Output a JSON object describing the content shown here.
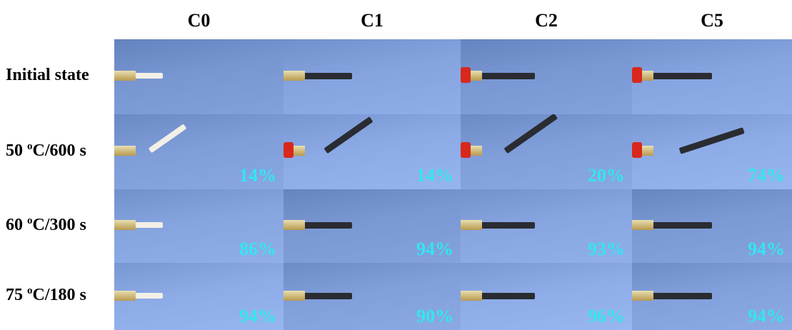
{
  "columns": [
    "C0",
    "C1",
    "C2",
    "C5"
  ],
  "rows": [
    {
      "label": "Initial state"
    },
    {
      "label_parts": [
        "50",
        "o",
        "C/600 s"
      ],
      "recovery": [
        "14%",
        "14%",
        "20%",
        "74%"
      ]
    },
    {
      "label_parts": [
        "60",
        "o",
        "C/300 s"
      ],
      "recovery": [
        "86%",
        "94%",
        "93%",
        "94%"
      ]
    },
    {
      "label_parts": [
        "75",
        "o",
        "C/180 s"
      ],
      "recovery": [
        "94%",
        "90%",
        "96%",
        "94%"
      ]
    }
  ]
}
